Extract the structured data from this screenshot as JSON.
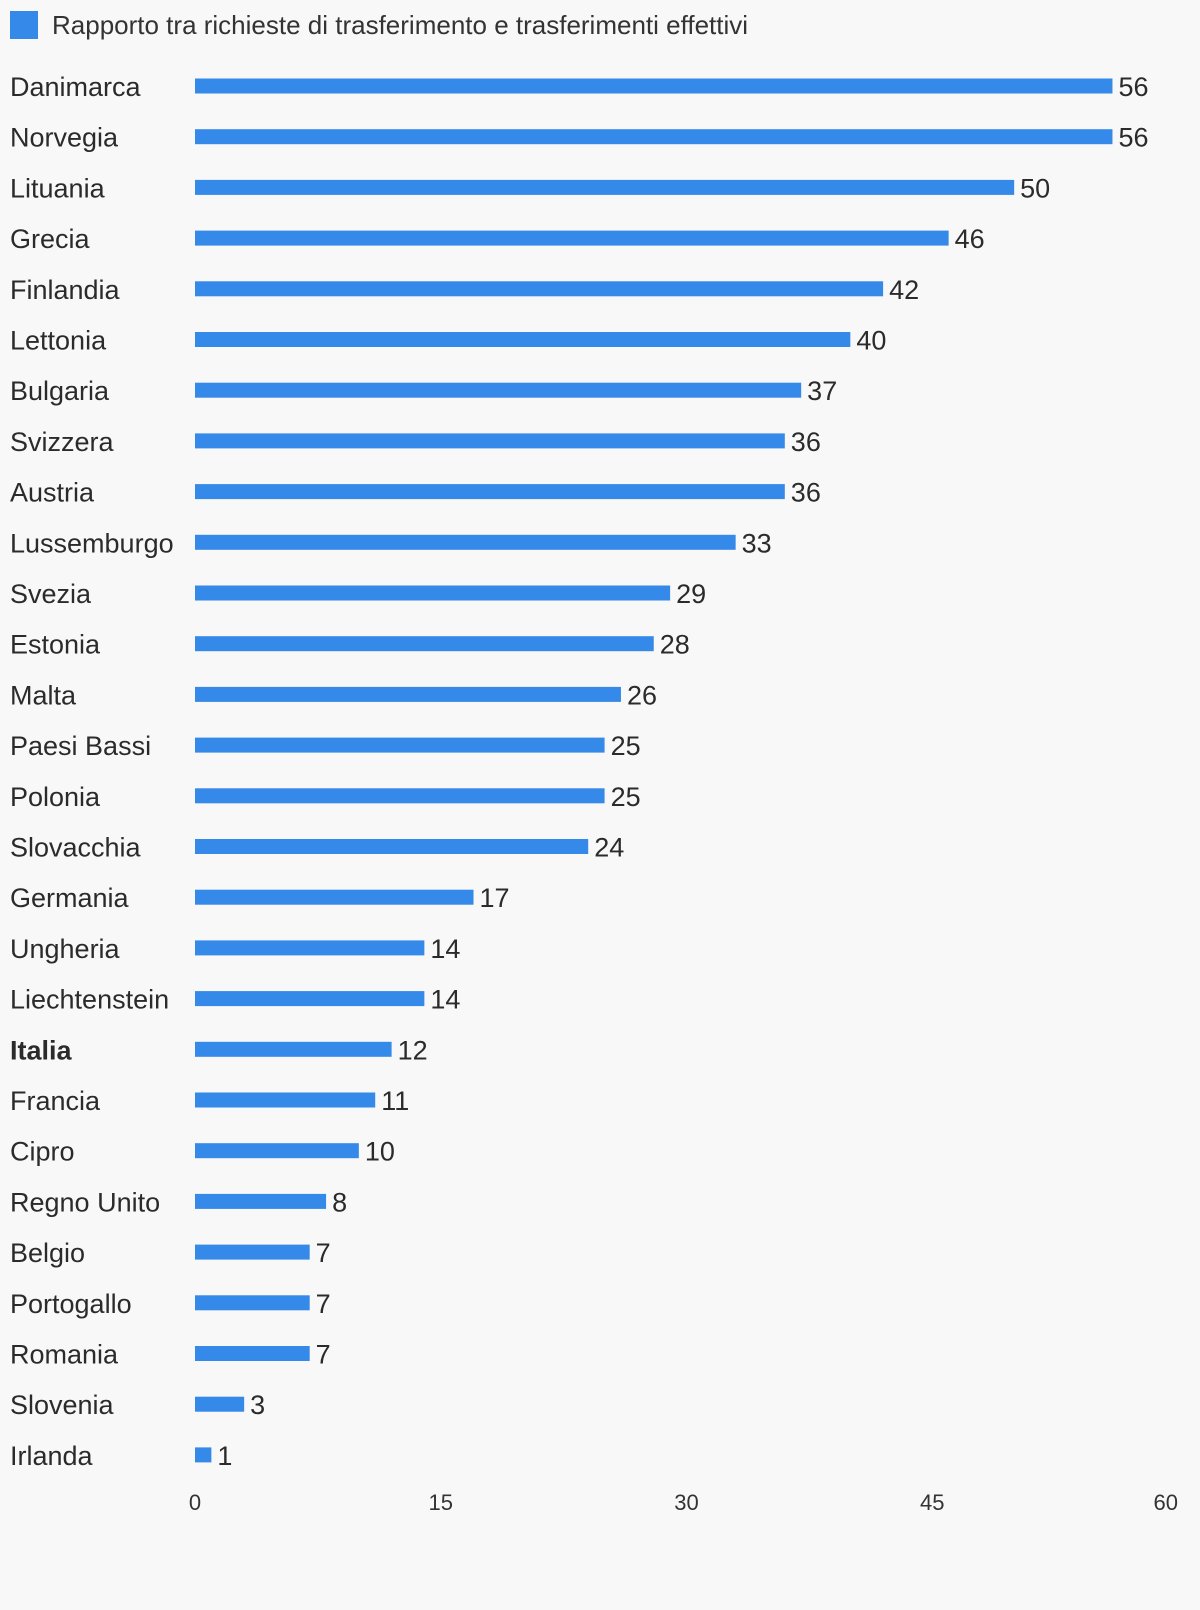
{
  "chart_data": {
    "type": "bar",
    "orientation": "horizontal",
    "legend": {
      "position": "top-left",
      "entries": [
        "Rapporto tra richieste di trasferimento e trasferimenti effettivi"
      ]
    },
    "series": [
      {
        "name": "Rapporto tra richieste di trasferimento e trasferimenti effettivi",
        "color": "#3589e8",
        "values": [
          56,
          56,
          50,
          46,
          42,
          40,
          37,
          36,
          36,
          33,
          29,
          28,
          26,
          25,
          25,
          24,
          17,
          14,
          14,
          12,
          11,
          10,
          8,
          7,
          7,
          7,
          3,
          1
        ]
      }
    ],
    "categories": [
      "Danimarca",
      "Norvegia",
      "Lituania",
      "Grecia",
      "Finlandia",
      "Lettonia",
      "Bulgaria",
      "Svizzera",
      "Austria",
      "Lussemburgo",
      "Svezia",
      "Estonia",
      "Malta",
      "Paesi Bassi",
      "Polonia",
      "Slovacchia",
      "Germania",
      "Ungheria",
      "Liechtenstein",
      "Italia",
      "Francia",
      "Cipro",
      "Regno Unito",
      "Belgio",
      "Portogallo",
      "Romania",
      "Slovenia",
      "Irlanda"
    ],
    "highlighted_category": "Italia",
    "x_ticks": [
      "0",
      "15",
      "30",
      "45",
      "60"
    ],
    "xlim": [
      0,
      60
    ],
    "grid": false,
    "data_labels": true
  }
}
